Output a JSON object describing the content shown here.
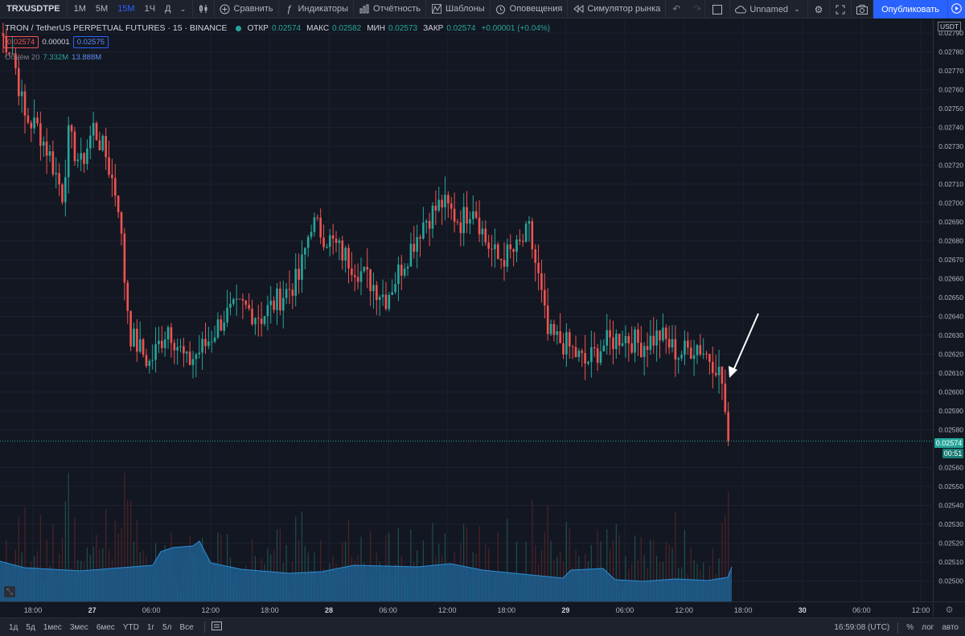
{
  "toolbar": {
    "symbol": "TRXUSDTPE",
    "timeframes": [
      {
        "label": "1М",
        "active": false
      },
      {
        "label": "5М",
        "active": false
      },
      {
        "label": "15М",
        "active": true
      },
      {
        "label": "1Ч",
        "active": false
      },
      {
        "label": "Д",
        "active": false
      }
    ],
    "compare_label": "Сравнить",
    "indicators_label": "Индикаторы",
    "reports_label": "Отчётность",
    "templates_label": "Шаблоны",
    "alerts_label": "Оповещения",
    "replay_label": "Симулятор рынка",
    "layout_name": "Unnamed",
    "publish_label": "Опубликовать"
  },
  "legend": {
    "title": "TRON / TetherUS PERPETUAL FUTURES · 15 · BINANCE",
    "open_key": "ОТКР",
    "open": "0.02574",
    "high_key": "МАКС",
    "high": "0.02582",
    "low_key": "МИН",
    "low": "0.02573",
    "close_key": "ЗАКР",
    "close": "0.02574",
    "change": "+0.00001 (+0.04%)",
    "sell": "0.02574",
    "spread": "0.00001",
    "buy": "0.02575",
    "volume_label": "Объём 20",
    "volume_a": "7.332M",
    "volume_b": "13.888M"
  },
  "price_axis": {
    "currency": "USDT",
    "ticks": [
      "0.02790",
      "0.02780",
      "0.02770",
      "0.02760",
      "0.02750",
      "0.02740",
      "0.02730",
      "0.02720",
      "0.02710",
      "0.02700",
      "0.02690",
      "0.02680",
      "0.02670",
      "0.02660",
      "0.02650",
      "0.02640",
      "0.02630",
      "0.02620",
      "0.02610",
      "0.02600",
      "0.02590",
      "0.02580",
      "0.02560",
      "0.02550",
      "0.02540",
      "0.02530",
      "0.02520",
      "0.02510",
      "0.02500"
    ],
    "last_price": "0.02574",
    "countdown": "00:51"
  },
  "time_axis": {
    "labels": [
      "18:00",
      "27",
      "06:00",
      "12:00",
      "18:00",
      "28",
      "06:00",
      "12:00",
      "18:00",
      "29",
      "06:00",
      "12:00",
      "18:00",
      "30",
      "06:00",
      "12:00"
    ]
  },
  "colors": {
    "up": "#26a69a",
    "down": "#ef5350",
    "volume_fill": "#1f5f8f",
    "background": "#131722",
    "accent": "#2962ff"
  },
  "bottom_bar": {
    "ranges": [
      "1д",
      "5д",
      "1мес",
      "3мес",
      "6мес",
      "YTD",
      "1г",
      "5л",
      "Все"
    ],
    "clock": "16:59:08 (UTC)",
    "percent": "%",
    "log": "лог",
    "auto": "авто"
  },
  "chart_data": {
    "type": "candlestick",
    "symbol": "TRXUSDT",
    "interval": "15",
    "ylim": [
      0.02495,
      0.02795
    ],
    "x_labels": [
      "18:00",
      "27",
      "06:00",
      "12:00",
      "18:00",
      "28",
      "06:00",
      "12:00",
      "18:00",
      "29",
      "06:00",
      "12:00",
      "18:00",
      "30",
      "06:00",
      "12:00"
    ],
    "close_path": [
      [
        0,
        0.0279
      ],
      [
        4,
        0.0278
      ],
      [
        8,
        0.02745
      ],
      [
        12,
        0.0274
      ],
      [
        16,
        0.02725
      ],
      [
        20,
        0.02705
      ],
      [
        22,
        0.02735
      ],
      [
        26,
        0.0272
      ],
      [
        30,
        0.0274
      ],
      [
        34,
        0.02725
      ],
      [
        38,
        0.027
      ],
      [
        40,
        0.0266
      ],
      [
        42,
        0.0263
      ],
      [
        48,
        0.02615
      ],
      [
        54,
        0.02635
      ],
      [
        60,
        0.02615
      ],
      [
        66,
        0.02625
      ],
      [
        72,
        0.0264
      ],
      [
        78,
        0.02645
      ],
      [
        84,
        0.0264
      ],
      [
        90,
        0.0265
      ],
      [
        96,
        0.0266
      ],
      [
        100,
        0.0269
      ],
      [
        106,
        0.0268
      ],
      [
        112,
        0.0267
      ],
      [
        118,
        0.0266
      ],
      [
        124,
        0.0265
      ],
      [
        130,
        0.0267
      ],
      [
        136,
        0.0269
      ],
      [
        142,
        0.027
      ],
      [
        148,
        0.0269
      ],
      [
        152,
        0.027
      ],
      [
        156,
        0.0268
      ],
      [
        160,
        0.0267
      ],
      [
        166,
        0.02675
      ],
      [
        170,
        0.02685
      ],
      [
        173,
        0.0266
      ],
      [
        176,
        0.0263
      ],
      [
        182,
        0.02625
      ],
      [
        188,
        0.02615
      ],
      [
        194,
        0.02625
      ],
      [
        200,
        0.0263
      ],
      [
        206,
        0.02625
      ],
      [
        212,
        0.0263
      ],
      [
        218,
        0.0262
      ],
      [
        224,
        0.02625
      ],
      [
        230,
        0.02615
      ],
      [
        232,
        0.02605
      ],
      [
        234,
        0.02574
      ]
    ],
    "last_price": 0.02574
  },
  "annotation": {
    "type": "arrow",
    "color": "#ffffff"
  }
}
